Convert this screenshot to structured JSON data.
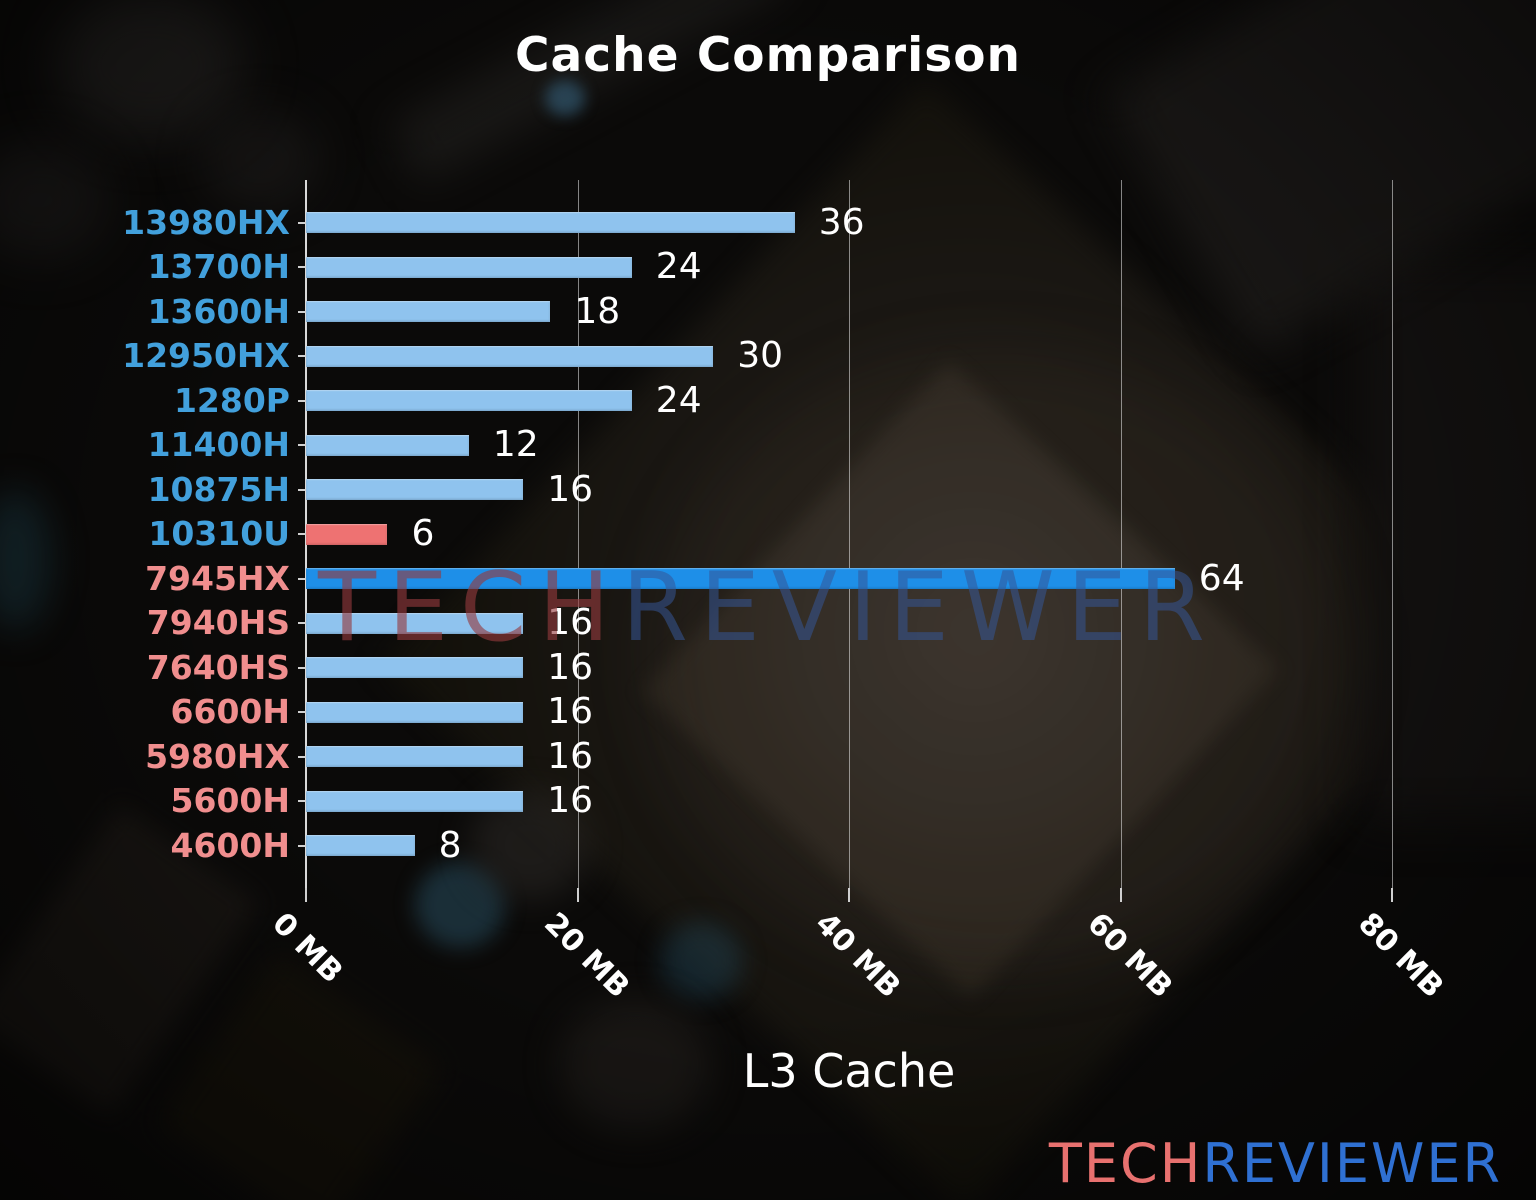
{
  "title": "Cache Comparison",
  "watermark": {
    "tech": "TECH",
    "reviewer": "REVIEWER"
  },
  "logo": {
    "tech": "TECH",
    "reviewer": "REVIEWER"
  },
  "palette": {
    "bar_default": "#8FC3EE",
    "bar_coral": "#EE7272",
    "bar_accent": "#1E8FE8",
    "label_intel": "#42A0DC",
    "label_amd": "#F08E8E",
    "value_label": "#FFFFFF",
    "logo_tech": "#E8716F",
    "logo_reviewer": "#2F70D2"
  },
  "chart_data": {
    "type": "bar",
    "orientation": "horizontal",
    "title": "Cache Comparison",
    "xlabel": "L3 Cache",
    "value_unit": "MB",
    "xlim": [
      0,
      80
    ],
    "grid": true,
    "legend": false,
    "xticks": [
      {
        "value": 0,
        "label": "0 MB"
      },
      {
        "value": 20,
        "label": "20 MB"
      },
      {
        "value": 40,
        "label": "40 MB"
      },
      {
        "value": 60,
        "label": "60 MB"
      },
      {
        "value": 80,
        "label": "80 MB"
      }
    ],
    "rows": [
      {
        "label": "13980HX",
        "value": 36,
        "group": "intel",
        "bar": "default"
      },
      {
        "label": "13700H",
        "value": 24,
        "group": "intel",
        "bar": "default"
      },
      {
        "label": "13600H",
        "value": 18,
        "group": "intel",
        "bar": "default"
      },
      {
        "label": "12950HX",
        "value": 30,
        "group": "intel",
        "bar": "default"
      },
      {
        "label": "1280P",
        "value": 24,
        "group": "intel",
        "bar": "default"
      },
      {
        "label": "11400H",
        "value": 12,
        "group": "intel",
        "bar": "default"
      },
      {
        "label": "10875H",
        "value": 16,
        "group": "intel",
        "bar": "default"
      },
      {
        "label": "10310U",
        "value": 6,
        "group": "intel",
        "bar": "coral"
      },
      {
        "label": "7945HX",
        "value": 64,
        "group": "amd",
        "bar": "accent"
      },
      {
        "label": "7940HS",
        "value": 16,
        "group": "amd",
        "bar": "default"
      },
      {
        "label": "7640HS",
        "value": 16,
        "group": "amd",
        "bar": "default"
      },
      {
        "label": "6600H",
        "value": 16,
        "group": "amd",
        "bar": "default"
      },
      {
        "label": "5980HX",
        "value": 16,
        "group": "amd",
        "bar": "default"
      },
      {
        "label": "5600H",
        "value": 16,
        "group": "amd",
        "bar": "default"
      },
      {
        "label": "4600H",
        "value": 8,
        "group": "amd",
        "bar": "default"
      }
    ]
  }
}
